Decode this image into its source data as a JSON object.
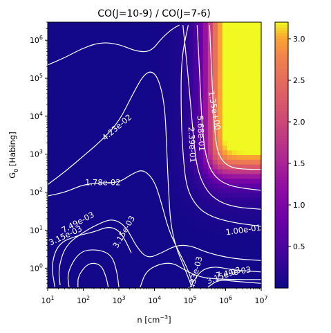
{
  "chart_data": {
    "type": "heatmap",
    "title": "CO(J=10-9) / CO(J=7-6)",
    "xlabel": "n [cm",
    "xlabel_sup": "−3",
    "xlabel_close": "]",
    "ylabel_main": "G",
    "ylabel_sub": "0",
    "ylabel_rest": " [Habing]",
    "x_scale": "log",
    "y_scale": "log",
    "xlim": [
      10,
      10000000
    ],
    "ylim": [
      0.3,
      3000000
    ],
    "x_ticks": [
      {
        "value": 10,
        "base": "10",
        "exp": "1"
      },
      {
        "value": 100,
        "base": "10",
        "exp": "2"
      },
      {
        "value": 1000,
        "base": "10",
        "exp": "3"
      },
      {
        "value": 10000,
        "base": "10",
        "exp": "4"
      },
      {
        "value": 100000,
        "base": "10",
        "exp": "5"
      },
      {
        "value": 1000000,
        "base": "10",
        "exp": "6"
      },
      {
        "value": 10000000,
        "base": "10",
        "exp": "7"
      }
    ],
    "y_ticks": [
      {
        "value": 1,
        "base": "10",
        "exp": "0"
      },
      {
        "value": 10,
        "base": "10",
        "exp": "1"
      },
      {
        "value": 100,
        "base": "10",
        "exp": "2"
      },
      {
        "value": 1000,
        "base": "10",
        "exp": "3"
      },
      {
        "value": 10000,
        "base": "10",
        "exp": "4"
      },
      {
        "value": 100000,
        "base": "10",
        "exp": "5"
      },
      {
        "value": 1000000,
        "base": "10",
        "exp": "6"
      }
    ],
    "colormap": "plasma",
    "colorbar": {
      "min": 0.0,
      "max": 3.2,
      "ticks": [
        "0.5",
        "1.0",
        "1.5",
        "2.0",
        "2.5",
        "3.0"
      ]
    },
    "contour_labels": [
      {
        "text": "4.23e-02",
        "logn": 2.95,
        "logg": 3.7,
        "angle": -40
      },
      {
        "text": "1.78e-02",
        "logn": 2.55,
        "logg": 2.25,
        "angle": 0
      },
      {
        "text": "2.39e-01",
        "logn": 5.05,
        "logg": 3.25,
        "angle": 87
      },
      {
        "text": "5.68e-01",
        "logn": 5.3,
        "logg": 3.55,
        "angle": 87
      },
      {
        "text": "1.35e+00",
        "logn": 5.68,
        "logg": 4.15,
        "angle": 80
      },
      {
        "text": "1.00e-01",
        "logn": 6.5,
        "logg": 1.0,
        "angle": -8
      },
      {
        "text": "7.49e-03",
        "logn": 1.85,
        "logg": 1.2,
        "angle": -28
      },
      {
        "text": "3.15e-03",
        "logn": 1.5,
        "logg": 0.85,
        "angle": -25
      },
      {
        "text": "3.15e-03",
        "logn": 3.15,
        "logg": 0.95,
        "angle": -60
      },
      {
        "text": "1.33e-03",
        "logn": 5.15,
        "logg": -0.15,
        "angle": -75
      },
      {
        "text": "3.15e-03",
        "logn": 5.95,
        "logg": -0.2,
        "angle": -20
      },
      {
        "text": "7.49e-03",
        "logn": 6.22,
        "logg": -0.12,
        "angle": -10
      }
    ]
  }
}
